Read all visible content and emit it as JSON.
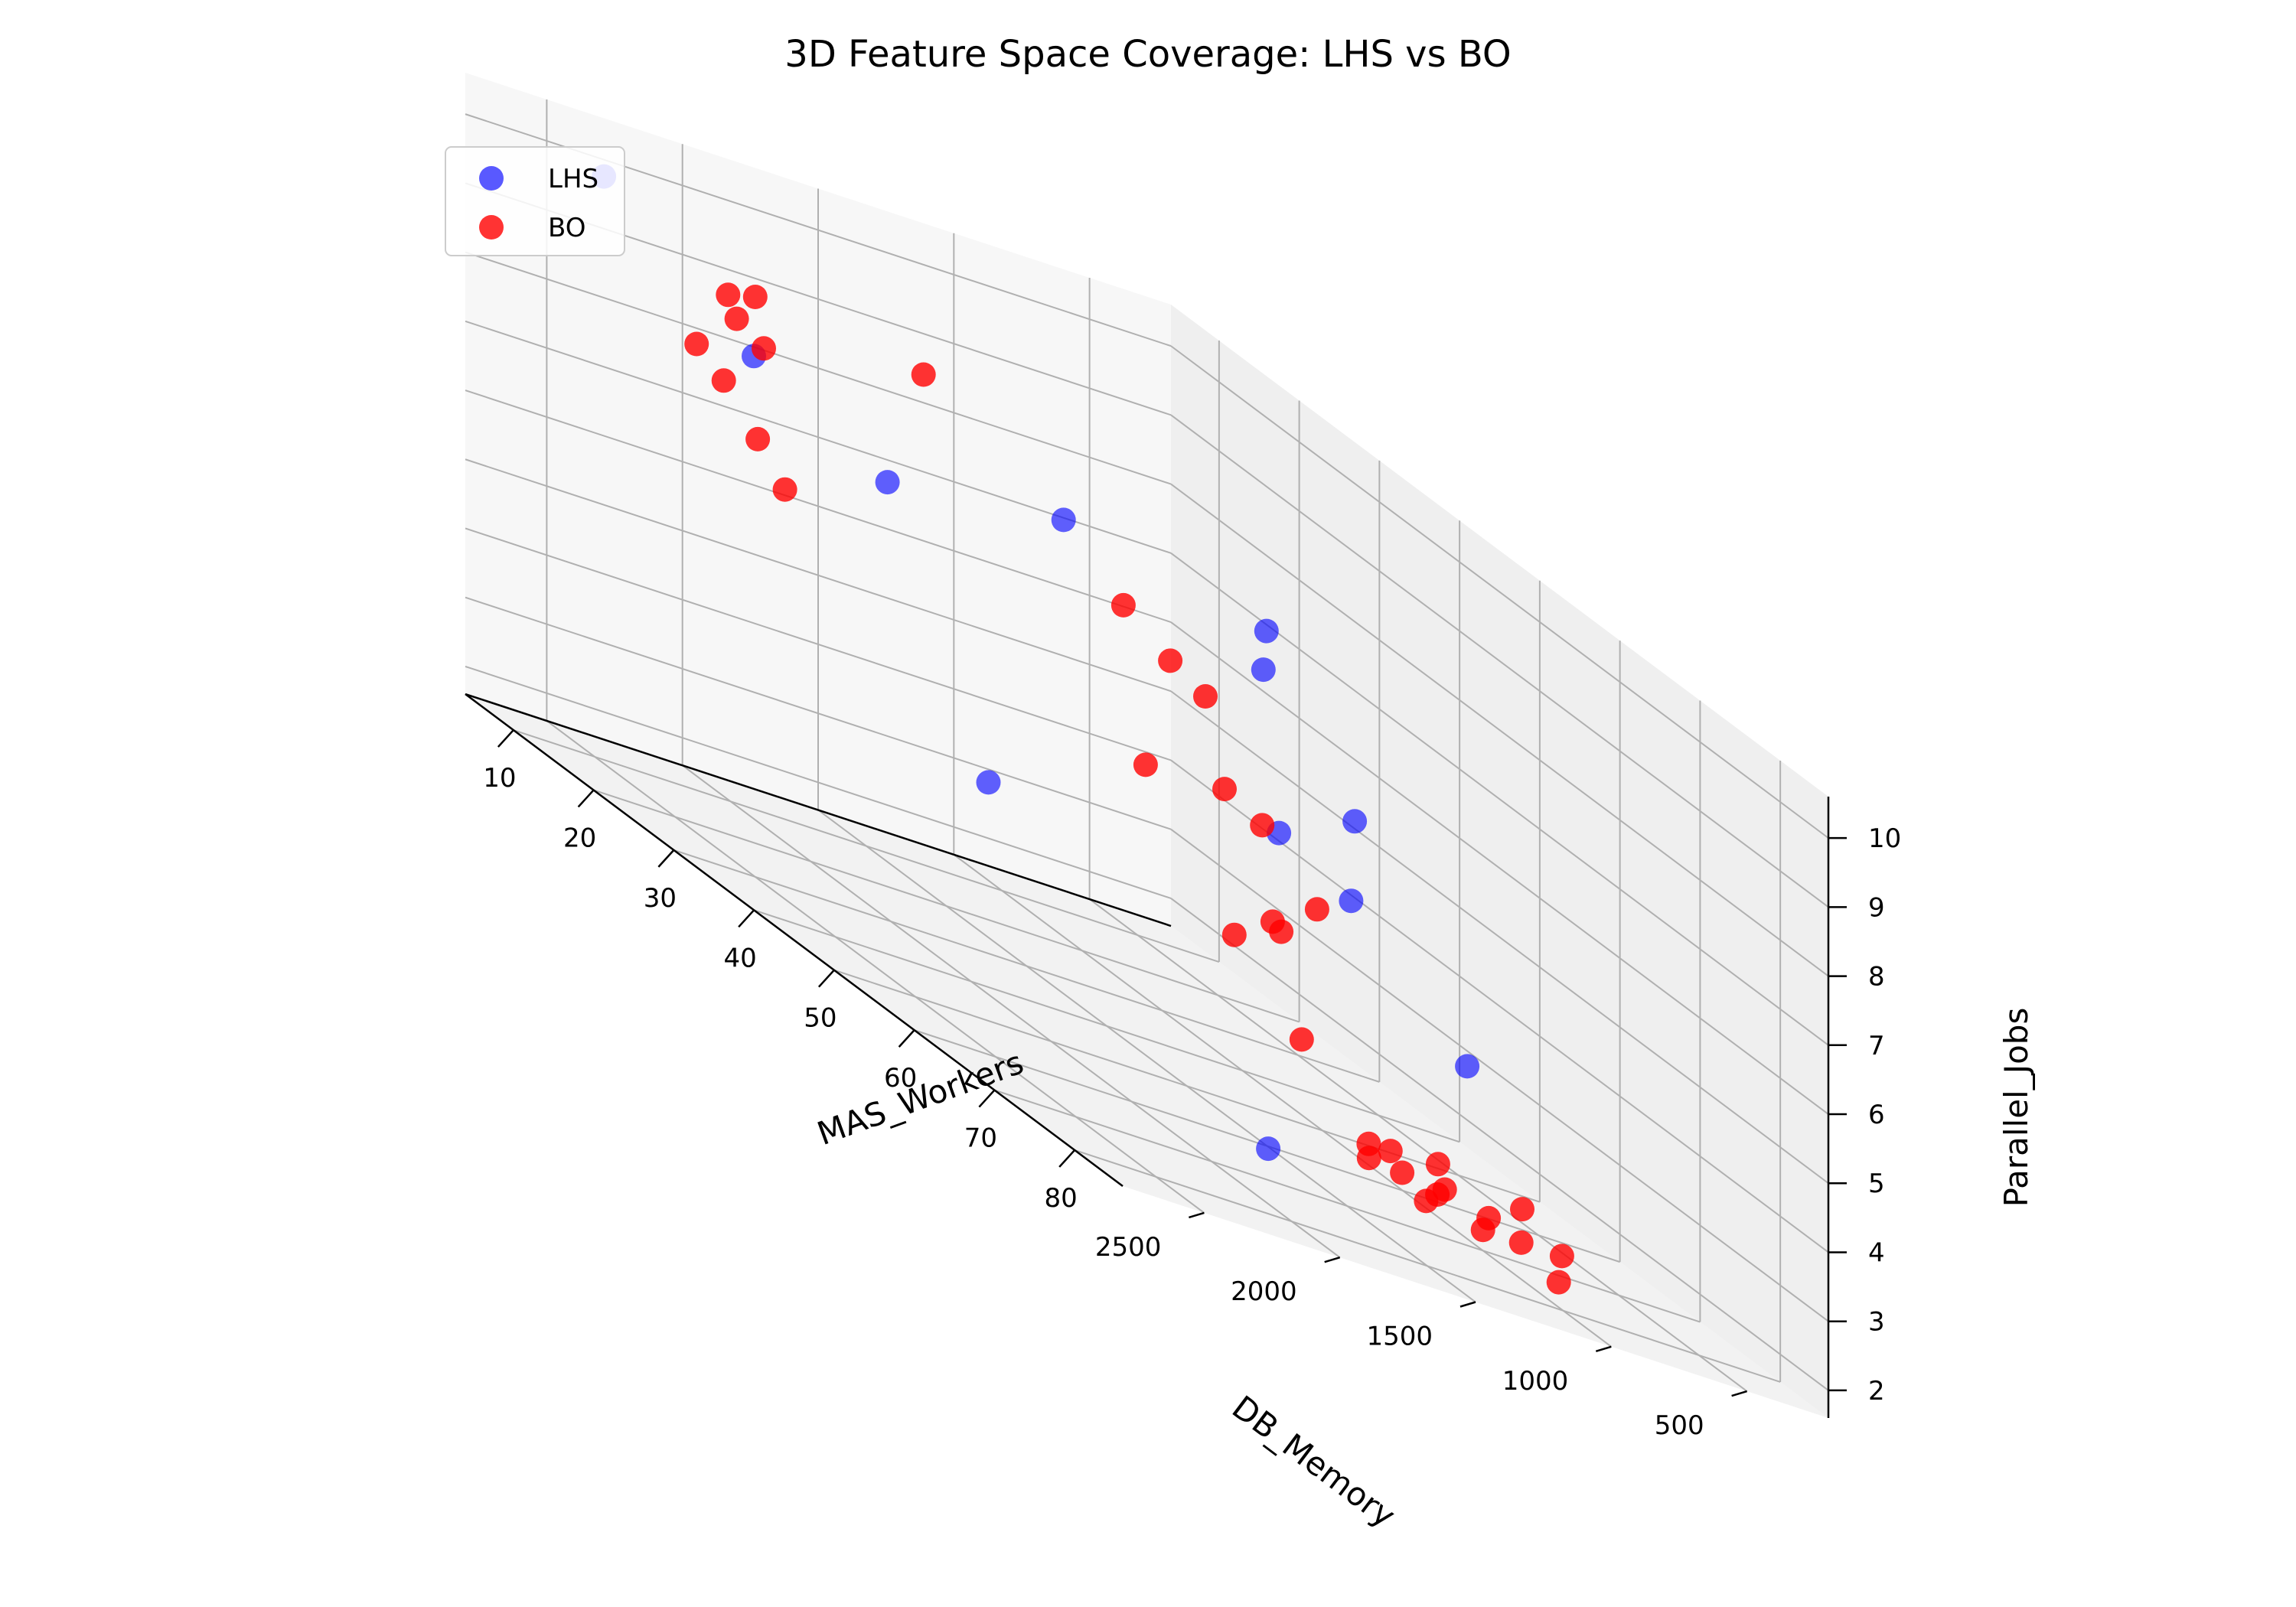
{
  "chart_data": {
    "type": "scatter",
    "title": "3D Feature Space Coverage: LHS vs BO",
    "xlabel": "DB_Memory",
    "ylabel": "MAS_Workers",
    "zlabel": "Parallel_Jobs",
    "legend_position": "top-left",
    "grid": true,
    "xlim": [
      200,
      2800
    ],
    "ylim": [
      4,
      86
    ],
    "zlim": [
      1.6,
      10.6
    ],
    "xticks": [
      500,
      1000,
      1500,
      2000,
      2500
    ],
    "yticks": [
      10,
      20,
      30,
      40,
      50,
      60,
      70,
      80
    ],
    "zticks": [
      2,
      3,
      4,
      5,
      6,
      7,
      8,
      9,
      10
    ],
    "series": [
      {
        "name": "LHS",
        "color": "#0000ff",
        "points": [
          {
            "x": 2437,
            "y": 9,
            "z": 10.0
          },
          {
            "x": 2180,
            "y": 19,
            "z": 8.6
          },
          {
            "x": 1924,
            "y": 27,
            "z": 7.8
          },
          {
            "x": 1650,
            "y": 65,
            "z": 9.3
          },
          {
            "x": 1650,
            "y": 76,
            "z": 7.5
          },
          {
            "x": 2250,
            "y": 60,
            "z": 9.7
          },
          {
            "x": 1220,
            "y": 52,
            "z": 5.8
          },
          {
            "x": 1220,
            "y": 61,
            "z": 5.6
          },
          {
            "x": 1100,
            "y": 46,
            "z": 7.8
          },
          {
            "x": 2320,
            "y": 53,
            "z": 5.2
          },
          {
            "x": 1880,
            "y": 73,
            "z": 2.2
          },
          {
            "x": 940,
            "y": 66,
            "z": 4.0
          }
        ]
      },
      {
        "name": "BO",
        "color": "#ff0000",
        "points": [
          {
            "x": 2500,
            "y": 30,
            "z": 10.0
          },
          {
            "x": 2600,
            "y": 30,
            "z": 9.9
          },
          {
            "x": 2450,
            "y": 26,
            "z": 9.4
          },
          {
            "x": 2350,
            "y": 26,
            "z": 9.1
          },
          {
            "x": 2450,
            "y": 21,
            "z": 8.6
          },
          {
            "x": 2350,
            "y": 21,
            "z": 8.2
          },
          {
            "x": 2520,
            "y": 31,
            "z": 8.0
          },
          {
            "x": 2420,
            "y": 31,
            "z": 7.4
          },
          {
            "x": 2500,
            "y": 51,
            "z": 10.7
          },
          {
            "x": 2300,
            "y": 75,
            "z": 8.9
          },
          {
            "x": 2200,
            "y": 76,
            "z": 8.6
          },
          {
            "x": 2000,
            "y": 59,
            "z": 8.7
          },
          {
            "x": 2100,
            "y": 75,
            "z": 7.3
          },
          {
            "x": 2050,
            "y": 78,
            "z": 7.1
          },
          {
            "x": 2100,
            "y": 81,
            "z": 5.9
          },
          {
            "x": 1950,
            "y": 77,
            "z": 5.6
          },
          {
            "x": 1700,
            "y": 73,
            "z": 5.9
          },
          {
            "x": 1800,
            "y": 55,
            "z": 6.3
          },
          {
            "x": 1680,
            "y": 62,
            "z": 4.6
          },
          {
            "x": 1550,
            "y": 66,
            "z": 3.6
          },
          {
            "x": 1400,
            "y": 72,
            "z": 2.7
          },
          {
            "x": 1480,
            "y": 72,
            "z": 2.7
          },
          {
            "x": 1420,
            "y": 70,
            "z": 2.4
          },
          {
            "x": 1200,
            "y": 72,
            "z": 2.4
          },
          {
            "x": 1150,
            "y": 65,
            "z": 2.1
          },
          {
            "x": 1180,
            "y": 69,
            "z": 2.0
          },
          {
            "x": 1050,
            "y": 66,
            "z": 2.0
          },
          {
            "x": 1000,
            "y": 70,
            "z": 1.9
          },
          {
            "x": 900,
            "y": 61,
            "z": 2.2
          },
          {
            "x": 920,
            "y": 68,
            "z": 2.0
          },
          {
            "x": 800,
            "y": 68,
            "z": 1.8
          },
          {
            "x": 780,
            "y": 72,
            "z": 1.6
          },
          {
            "x": 650,
            "y": 68,
            "z": 1.8
          },
          {
            "x": 560,
            "y": 60,
            "z": 1.9
          }
        ]
      }
    ]
  }
}
